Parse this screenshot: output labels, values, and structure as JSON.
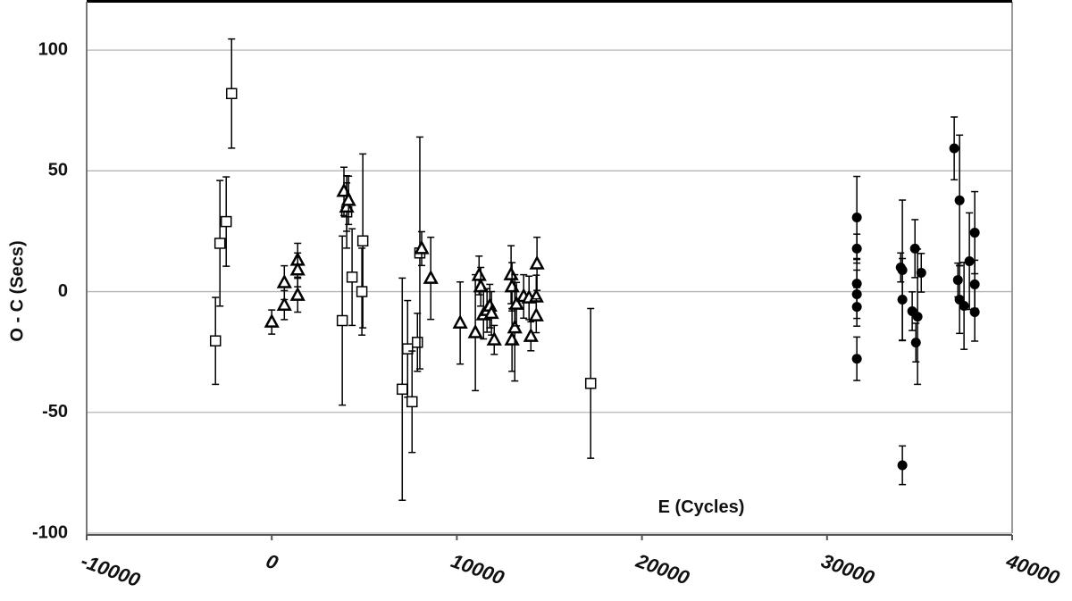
{
  "chart_data": {
    "type": "scatter",
    "x_label": "E (Cycles)",
    "y_label": "O - C (Secs)",
    "xlim": [
      -10000,
      40000
    ],
    "xticks": [
      -10000,
      0,
      10000,
      20000,
      30000,
      40000
    ],
    "ylim": [
      -100,
      120
    ],
    "yticks": [
      -100,
      -50,
      0,
      50,
      100
    ],
    "grid": true,
    "series": [
      {
        "marker": "square",
        "color": "#000000",
        "x": [
          -3040,
          -2800,
          -2460,
          -2170,
          3810,
          4050,
          4340,
          4920,
          4870,
          7050,
          7340,
          7580,
          7870,
          8000,
          17230
        ],
        "values": [
          -20.4,
          20,
          29,
          82,
          -12,
          33,
          6,
          21,
          0,
          -40.4,
          -23.7,
          -45.6,
          -21,
          16,
          -38
        ],
        "errors": [
          18,
          26,
          18.5,
          22.6,
          35,
          15,
          20,
          36,
          18,
          46,
          20,
          21,
          12,
          48,
          31
        ]
      },
      {
        "marker": "triangle",
        "color": "#000000",
        "x": [
          0,
          680,
          680,
          1400,
          1400,
          1400,
          3900,
          4050,
          4150,
          8590,
          8100,
          10180,
          11000,
          11200,
          11290,
          11440,
          11630,
          11780,
          11870,
          12020,
          12930,
          12980,
          12980,
          13130,
          13220,
          13610,
          13900,
          14000,
          14290,
          14290,
          14330
        ],
        "values": [
          -12.6,
          3.7,
          -5.6,
          13,
          9,
          -1.5,
          41.5,
          35,
          37.8,
          5.5,
          17.8,
          -13,
          -17,
          6.7,
          2,
          -9.6,
          -7.8,
          -6,
          -9,
          -20,
          7,
          2,
          -20,
          -15,
          -5.2,
          -2,
          -2.6,
          -18.5,
          -2.2,
          -10,
          11.5
        ],
        "errors": [
          5,
          7,
          6,
          7,
          7,
          7,
          10,
          10,
          10,
          17,
          7,
          17,
          24,
          8,
          8,
          10,
          9,
          9,
          9,
          6,
          12,
          10,
          13,
          22,
          9,
          9,
          9,
          6,
          9,
          7,
          11
        ]
      },
      {
        "marker": "circle",
        "color": "#000000",
        "x": [
          31610,
          31610,
          31610,
          31610,
          31610,
          31610,
          33980,
          34070,
          34070,
          34070,
          34600,
          34750,
          34800,
          34890,
          35090,
          36870,
          37070,
          37160,
          37160,
          37400,
          37690,
          37980,
          37980,
          37980
        ],
        "values": [
          30.7,
          17.8,
          3.3,
          -1.1,
          -6.3,
          -27.8,
          10,
          8.9,
          -3.3,
          -71.9,
          -8.1,
          17.8,
          -21.1,
          -10.4,
          7.8,
          59.3,
          4.8,
          37.8,
          -3.3,
          -5.9,
          12.6,
          24.4,
          3,
          -8.5
        ],
        "errors": [
          17,
          6,
          10,
          10,
          8,
          9,
          6,
          29,
          17,
          8,
          8,
          12,
          8,
          28,
          8,
          13,
          7,
          27,
          14,
          18,
          20,
          17,
          10,
          12
        ]
      }
    ]
  }
}
